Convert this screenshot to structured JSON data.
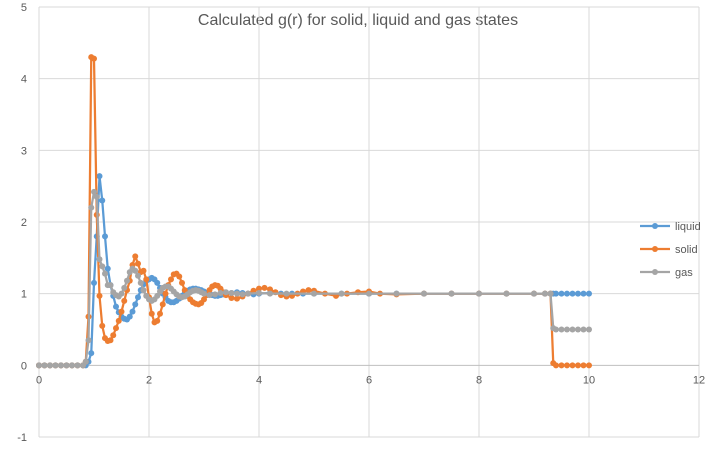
{
  "chart_data": {
    "type": "scatter",
    "title": "Calculated g(r) for solid, liquid and gas states",
    "xlabel": "",
    "ylabel": "",
    "xlim": [
      0,
      12
    ],
    "ylim": [
      -1,
      5
    ],
    "x_ticks": [
      0,
      2,
      4,
      6,
      8,
      10,
      12
    ],
    "y_ticks": [
      -1,
      0,
      1,
      2,
      3,
      4,
      5
    ],
    "grid": true,
    "legend": "right",
    "series": [
      {
        "name": "liquid",
        "color": "#5B9BD5",
        "points": [
          [
            0,
            0
          ],
          [
            0.1,
            0
          ],
          [
            0.2,
            0
          ],
          [
            0.3,
            0
          ],
          [
            0.4,
            0
          ],
          [
            0.5,
            0
          ],
          [
            0.6,
            0
          ],
          [
            0.7,
            0
          ],
          [
            0.8,
            0
          ],
          [
            0.85,
            0
          ],
          [
            0.9,
            0.05
          ],
          [
            0.95,
            0.17
          ],
          [
            1.0,
            1.15
          ],
          [
            1.05,
            1.8
          ],
          [
            1.1,
            2.64
          ],
          [
            1.15,
            2.3
          ],
          [
            1.2,
            1.8
          ],
          [
            1.25,
            1.35
          ],
          [
            1.3,
            1.12
          ],
          [
            1.35,
            0.97
          ],
          [
            1.4,
            0.82
          ],
          [
            1.45,
            0.74
          ],
          [
            1.5,
            0.68
          ],
          [
            1.55,
            0.65
          ],
          [
            1.6,
            0.64
          ],
          [
            1.65,
            0.68
          ],
          [
            1.7,
            0.75
          ],
          [
            1.75,
            0.85
          ],
          [
            1.8,
            0.95
          ],
          [
            1.85,
            1.05
          ],
          [
            1.9,
            1.13
          ],
          [
            1.95,
            1.18
          ],
          [
            2.0,
            1.2
          ],
          [
            2.05,
            1.22
          ],
          [
            2.1,
            1.2
          ],
          [
            2.15,
            1.15
          ],
          [
            2.2,
            1.08
          ],
          [
            2.25,
            1.0
          ],
          [
            2.3,
            0.95
          ],
          [
            2.35,
            0.9
          ],
          [
            2.4,
            0.88
          ],
          [
            2.45,
            0.88
          ],
          [
            2.5,
            0.9
          ],
          [
            2.55,
            0.93
          ],
          [
            2.6,
            0.97
          ],
          [
            2.65,
            1.01
          ],
          [
            2.7,
            1.04
          ],
          [
            2.75,
            1.06
          ],
          [
            2.8,
            1.07
          ],
          [
            2.85,
            1.07
          ],
          [
            2.9,
            1.06
          ],
          [
            2.95,
            1.05
          ],
          [
            3.0,
            1.03
          ],
          [
            3.05,
            1.01
          ],
          [
            3.1,
            0.99
          ],
          [
            3.15,
            0.98
          ],
          [
            3.2,
            0.97
          ],
          [
            3.25,
            0.97
          ],
          [
            3.3,
            0.98
          ],
          [
            3.35,
            0.99
          ],
          [
            3.4,
            1.0
          ],
          [
            3.5,
            1.01
          ],
          [
            3.6,
            1.02
          ],
          [
            3.7,
            1.01
          ],
          [
            3.8,
            1.0
          ],
          [
            3.9,
            0.99
          ],
          [
            4.0,
            1.0
          ],
          [
            4.2,
            1.01
          ],
          [
            4.4,
            1.0
          ],
          [
            4.6,
            1.0
          ],
          [
            4.8,
            1.0
          ],
          [
            5.0,
            1.0
          ],
          [
            5.5,
            1.0
          ],
          [
            6.0,
            1.0
          ],
          [
            6.5,
            1.0
          ],
          [
            7.0,
            1.0
          ],
          [
            7.5,
            1.0
          ],
          [
            8.0,
            1.0
          ],
          [
            8.5,
            1.0
          ],
          [
            9.0,
            1.0
          ],
          [
            9.2,
            1.0
          ],
          [
            9.3,
            1.0
          ],
          [
            9.35,
            1.0
          ],
          [
            9.4,
            1.0
          ],
          [
            9.5,
            1.0
          ],
          [
            9.6,
            1.0
          ],
          [
            9.7,
            1.0
          ],
          [
            9.8,
            1.0
          ],
          [
            9.9,
            1.0
          ],
          [
            10.0,
            1.0
          ]
        ]
      },
      {
        "name": "solid",
        "color": "#ED7D31",
        "points": [
          [
            0,
            0
          ],
          [
            0.1,
            0
          ],
          [
            0.2,
            0
          ],
          [
            0.3,
            0
          ],
          [
            0.4,
            0
          ],
          [
            0.5,
            0
          ],
          [
            0.6,
            0
          ],
          [
            0.7,
            0
          ],
          [
            0.8,
            0
          ],
          [
            0.85,
            0.05
          ],
          [
            0.9,
            0.68
          ],
          [
            0.95,
            4.3
          ],
          [
            1.0,
            4.28
          ],
          [
            1.05,
            2.1
          ],
          [
            1.1,
            0.97
          ],
          [
            1.15,
            0.55
          ],
          [
            1.2,
            0.38
          ],
          [
            1.25,
            0.34
          ],
          [
            1.3,
            0.35
          ],
          [
            1.35,
            0.42
          ],
          [
            1.4,
            0.52
          ],
          [
            1.45,
            0.62
          ],
          [
            1.5,
            0.75
          ],
          [
            1.55,
            0.9
          ],
          [
            1.6,
            1.05
          ],
          [
            1.65,
            1.18
          ],
          [
            1.7,
            1.4
          ],
          [
            1.75,
            1.52
          ],
          [
            1.8,
            1.42
          ],
          [
            1.85,
            1.3
          ],
          [
            1.9,
            1.32
          ],
          [
            1.95,
            1.2
          ],
          [
            2.0,
            0.95
          ],
          [
            2.05,
            0.72
          ],
          [
            2.1,
            0.6
          ],
          [
            2.15,
            0.62
          ],
          [
            2.2,
            0.72
          ],
          [
            2.25,
            0.85
          ],
          [
            2.3,
            1.0
          ],
          [
            2.35,
            1.12
          ],
          [
            2.4,
            1.2
          ],
          [
            2.45,
            1.27
          ],
          [
            2.5,
            1.28
          ],
          [
            2.55,
            1.24
          ],
          [
            2.6,
            1.15
          ],
          [
            2.65,
            1.05
          ],
          [
            2.7,
            0.97
          ],
          [
            2.75,
            0.92
          ],
          [
            2.8,
            0.88
          ],
          [
            2.85,
            0.86
          ],
          [
            2.9,
            0.85
          ],
          [
            2.95,
            0.87
          ],
          [
            3.0,
            0.92
          ],
          [
            3.05,
            0.98
          ],
          [
            3.1,
            1.05
          ],
          [
            3.15,
            1.1
          ],
          [
            3.2,
            1.12
          ],
          [
            3.25,
            1.11
          ],
          [
            3.3,
            1.07
          ],
          [
            3.35,
            1.02
          ],
          [
            3.4,
            0.98
          ],
          [
            3.5,
            0.94
          ],
          [
            3.6,
            0.93
          ],
          [
            3.7,
            0.96
          ],
          [
            3.8,
            1.0
          ],
          [
            3.9,
            1.04
          ],
          [
            4.0,
            1.07
          ],
          [
            4.1,
            1.08
          ],
          [
            4.2,
            1.06
          ],
          [
            4.3,
            1.02
          ],
          [
            4.4,
            0.98
          ],
          [
            4.5,
            0.96
          ],
          [
            4.6,
            0.97
          ],
          [
            4.7,
            1.0
          ],
          [
            4.8,
            1.03
          ],
          [
            4.9,
            1.05
          ],
          [
            5.0,
            1.04
          ],
          [
            5.2,
            1.0
          ],
          [
            5.4,
            0.97
          ],
          [
            5.6,
            1.0
          ],
          [
            5.8,
            1.02
          ],
          [
            6.0,
            1.03
          ],
          [
            6.2,
            1.0
          ],
          [
            6.5,
            0.99
          ],
          [
            7.0,
            1.0
          ],
          [
            7.5,
            1.0
          ],
          [
            8.0,
            1.0
          ],
          [
            8.5,
            1.0
          ],
          [
            9.0,
            1.0
          ],
          [
            9.2,
            1.0
          ],
          [
            9.3,
            1.0
          ],
          [
            9.35,
            0.03
          ],
          [
            9.4,
            0
          ],
          [
            9.5,
            0
          ],
          [
            9.6,
            0
          ],
          [
            9.7,
            0
          ],
          [
            9.8,
            0
          ],
          [
            9.9,
            0
          ],
          [
            10.0,
            0
          ]
        ]
      },
      {
        "name": "gas",
        "color": "#A5A5A5",
        "points": [
          [
            0,
            0
          ],
          [
            0.1,
            0
          ],
          [
            0.2,
            0
          ],
          [
            0.3,
            0
          ],
          [
            0.4,
            0
          ],
          [
            0.5,
            0
          ],
          [
            0.6,
            0
          ],
          [
            0.7,
            0
          ],
          [
            0.8,
            0
          ],
          [
            0.85,
            0.05
          ],
          [
            0.9,
            0.35
          ],
          [
            0.95,
            2.2
          ],
          [
            1.0,
            2.42
          ],
          [
            1.05,
            2.35
          ],
          [
            1.1,
            1.48
          ],
          [
            1.15,
            1.38
          ],
          [
            1.2,
            1.28
          ],
          [
            1.25,
            1.12
          ],
          [
            1.3,
            1.12
          ],
          [
            1.35,
            1.02
          ],
          [
            1.4,
            0.98
          ],
          [
            1.45,
            0.96
          ],
          [
            1.5,
            1.0
          ],
          [
            1.55,
            1.08
          ],
          [
            1.6,
            1.18
          ],
          [
            1.65,
            1.3
          ],
          [
            1.7,
            1.35
          ],
          [
            1.75,
            1.32
          ],
          [
            1.8,
            1.25
          ],
          [
            1.85,
            1.15
          ],
          [
            1.9,
            1.05
          ],
          [
            1.95,
            0.97
          ],
          [
            2.0,
            0.92
          ],
          [
            2.05,
            0.9
          ],
          [
            2.1,
            0.92
          ],
          [
            2.15,
            0.97
          ],
          [
            2.2,
            1.03
          ],
          [
            2.25,
            1.08
          ],
          [
            2.3,
            1.1
          ],
          [
            2.35,
            1.1
          ],
          [
            2.4,
            1.07
          ],
          [
            2.45,
            1.03
          ],
          [
            2.5,
            0.99
          ],
          [
            2.55,
            0.96
          ],
          [
            2.6,
            0.95
          ],
          [
            2.65,
            0.96
          ],
          [
            2.7,
            0.99
          ],
          [
            2.75,
            1.02
          ],
          [
            2.8,
            1.04
          ],
          [
            2.85,
            1.05
          ],
          [
            2.9,
            1.04
          ],
          [
            2.95,
            1.02
          ],
          [
            3.0,
            1.0
          ],
          [
            3.1,
            0.98
          ],
          [
            3.2,
            0.99
          ],
          [
            3.3,
            1.01
          ],
          [
            3.4,
            1.02
          ],
          [
            3.5,
            1.01
          ],
          [
            3.6,
            1.0
          ],
          [
            3.7,
            0.99
          ],
          [
            3.8,
            1.0
          ],
          [
            4.0,
            1.01
          ],
          [
            4.2,
            1.0
          ],
          [
            4.5,
            1.0
          ],
          [
            5.0,
            1.0
          ],
          [
            5.5,
            1.0
          ],
          [
            6.0,
            1.0
          ],
          [
            6.5,
            1.0
          ],
          [
            7.0,
            1.0
          ],
          [
            7.5,
            1.0
          ],
          [
            8.0,
            1.0
          ],
          [
            8.5,
            1.0
          ],
          [
            9.0,
            1.0
          ],
          [
            9.2,
            1.0
          ],
          [
            9.3,
            1.0
          ],
          [
            9.35,
            0.52
          ],
          [
            9.4,
            0.5
          ],
          [
            9.5,
            0.5
          ],
          [
            9.6,
            0.5
          ],
          [
            9.7,
            0.5
          ],
          [
            9.8,
            0.5
          ],
          [
            9.9,
            0.5
          ],
          [
            10.0,
            0.5
          ]
        ]
      }
    ]
  }
}
